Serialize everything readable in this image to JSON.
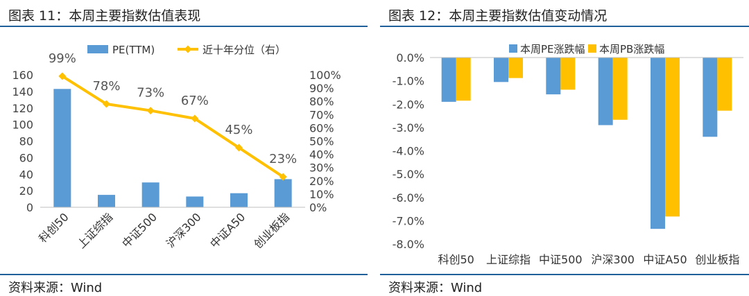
{
  "left": {
    "title": "图表 11：本周主要指数估值表现",
    "source": "资料来源：Wind",
    "colors": {
      "bar": "#5b9bd5",
      "line": "#ffc000"
    },
    "chart_data": {
      "type": "bar",
      "combo": "bar+line",
      "categories": [
        "科创50",
        "上证综指",
        "中证500",
        "沪深300",
        "中证A50",
        "创业板指"
      ],
      "series": [
        {
          "name": "PE(TTM)",
          "type": "bar",
          "axis": "left",
          "values": [
            143,
            15,
            30,
            13,
            17,
            34
          ]
        },
        {
          "name": "近十年分位（右）",
          "type": "line",
          "axis": "right",
          "values": [
            0.99,
            0.78,
            0.73,
            0.67,
            0.45,
            0.23
          ]
        }
      ],
      "data_labels": [
        "99%",
        "78%",
        "73%",
        "67%",
        "45%",
        "23%"
      ],
      "left_axis": {
        "ylim": [
          0,
          160
        ],
        "ticks": [
          "0",
          "20",
          "40",
          "60",
          "80",
          "100",
          "120",
          "140",
          "160"
        ]
      },
      "right_axis": {
        "ylim": [
          0,
          1
        ],
        "ticks": [
          "0%",
          "10%",
          "20%",
          "30%",
          "40%",
          "50%",
          "60%",
          "70%",
          "80%",
          "90%",
          "100%"
        ]
      },
      "legend_position": "top",
      "grid": false
    }
  },
  "right": {
    "title": "图表 12：本周主要指数估值变动情况",
    "source": "资料来源：Wind",
    "colors": {
      "pe": "#5b9bd5",
      "pb": "#ffc000"
    },
    "chart_data": {
      "type": "bar",
      "categories": [
        "科创50",
        "上证综指",
        "中证500",
        "沪深300",
        "中证A50",
        "创业板指"
      ],
      "series": [
        {
          "name": "本周PE涨跌幅",
          "values": [
            -0.019,
            -0.0105,
            -0.0158,
            -0.029,
            -0.0735,
            -0.034
          ]
        },
        {
          "name": "本周PB涨跌幅",
          "values": [
            -0.0185,
            -0.0088,
            -0.0138,
            -0.0267,
            -0.0682,
            -0.0228
          ]
        }
      ],
      "ylim": [
        -0.08,
        0
      ],
      "y_ticks": [
        "0.0%",
        "-1.0%",
        "-2.0%",
        "-3.0%",
        "-4.0%",
        "-5.0%",
        "-6.0%",
        "-7.0%",
        "-8.0%"
      ],
      "legend_position": "top",
      "grid": false
    }
  }
}
